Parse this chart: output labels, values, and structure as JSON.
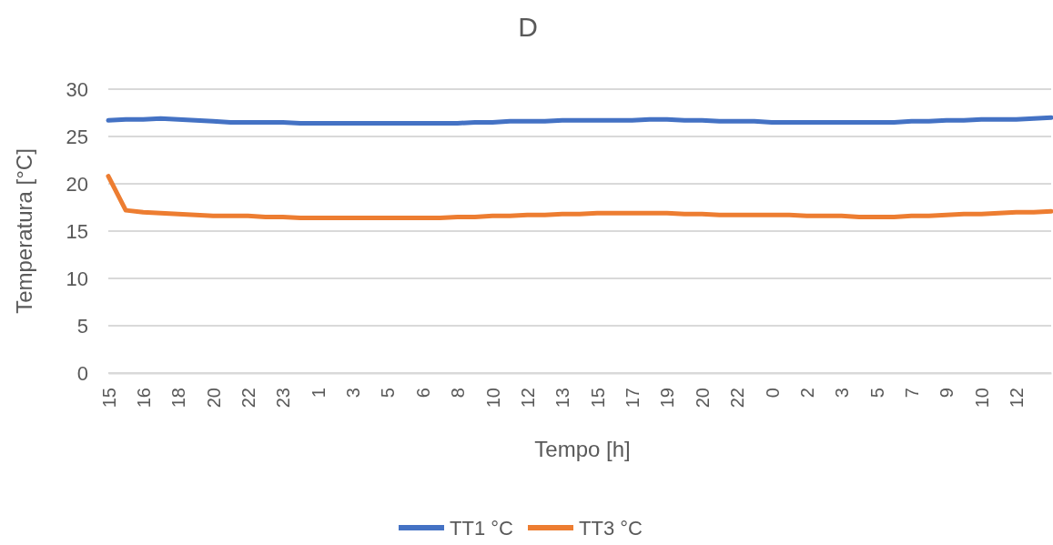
{
  "chart_data": {
    "type": "line",
    "title": "D",
    "xlabel": "Tempo [h]",
    "ylabel": "Temperatura [°C]",
    "categories": [
      "15",
      null,
      "16",
      null,
      "18",
      null,
      "20",
      null,
      "22",
      null,
      "23",
      null,
      "1",
      null,
      "3",
      null,
      "5",
      null,
      "6",
      null,
      "8",
      null,
      "10",
      null,
      "12",
      null,
      "13",
      null,
      "15",
      null,
      "17",
      null,
      "19",
      null,
      "20",
      null,
      "22",
      null,
      "0",
      null,
      "2",
      null,
      "3",
      null,
      "5",
      null,
      "7",
      null,
      "9",
      null,
      "10",
      null,
      "12",
      null,
      null
    ],
    "series": [
      {
        "name": "TT1 °C",
        "color": "#4472c4",
        "values": [
          26.7,
          26.8,
          26.8,
          26.9,
          26.8,
          26.7,
          26.6,
          26.5,
          26.5,
          26.5,
          26.5,
          26.4,
          26.4,
          26.4,
          26.4,
          26.4,
          26.4,
          26.4,
          26.4,
          26.4,
          26.4,
          26.5,
          26.5,
          26.6,
          26.6,
          26.6,
          26.7,
          26.7,
          26.7,
          26.7,
          26.7,
          26.8,
          26.8,
          26.7,
          26.7,
          26.6,
          26.6,
          26.6,
          26.5,
          26.5,
          26.5,
          26.5,
          26.5,
          26.5,
          26.5,
          26.5,
          26.6,
          26.6,
          26.7,
          26.7,
          26.8,
          26.8,
          26.8,
          26.9,
          27.0
        ]
      },
      {
        "name": "TT3 °C",
        "color": "#ed7d31",
        "values": [
          20.8,
          17.2,
          17.0,
          16.9,
          16.8,
          16.7,
          16.6,
          16.6,
          16.6,
          16.5,
          16.5,
          16.4,
          16.4,
          16.4,
          16.4,
          16.4,
          16.4,
          16.4,
          16.4,
          16.4,
          16.5,
          16.5,
          16.6,
          16.6,
          16.7,
          16.7,
          16.8,
          16.8,
          16.9,
          16.9,
          16.9,
          16.9,
          16.9,
          16.8,
          16.8,
          16.7,
          16.7,
          16.7,
          16.7,
          16.7,
          16.6,
          16.6,
          16.6,
          16.5,
          16.5,
          16.5,
          16.6,
          16.6,
          16.7,
          16.8,
          16.8,
          16.9,
          17.0,
          17.0,
          17.1
        ]
      }
    ],
    "ylim": [
      0,
      30
    ],
    "yticks": [
      0,
      5,
      10,
      15,
      20,
      25,
      30
    ],
    "grid": "y",
    "legend": "bottom",
    "marker": "none",
    "line_style": "solid"
  }
}
